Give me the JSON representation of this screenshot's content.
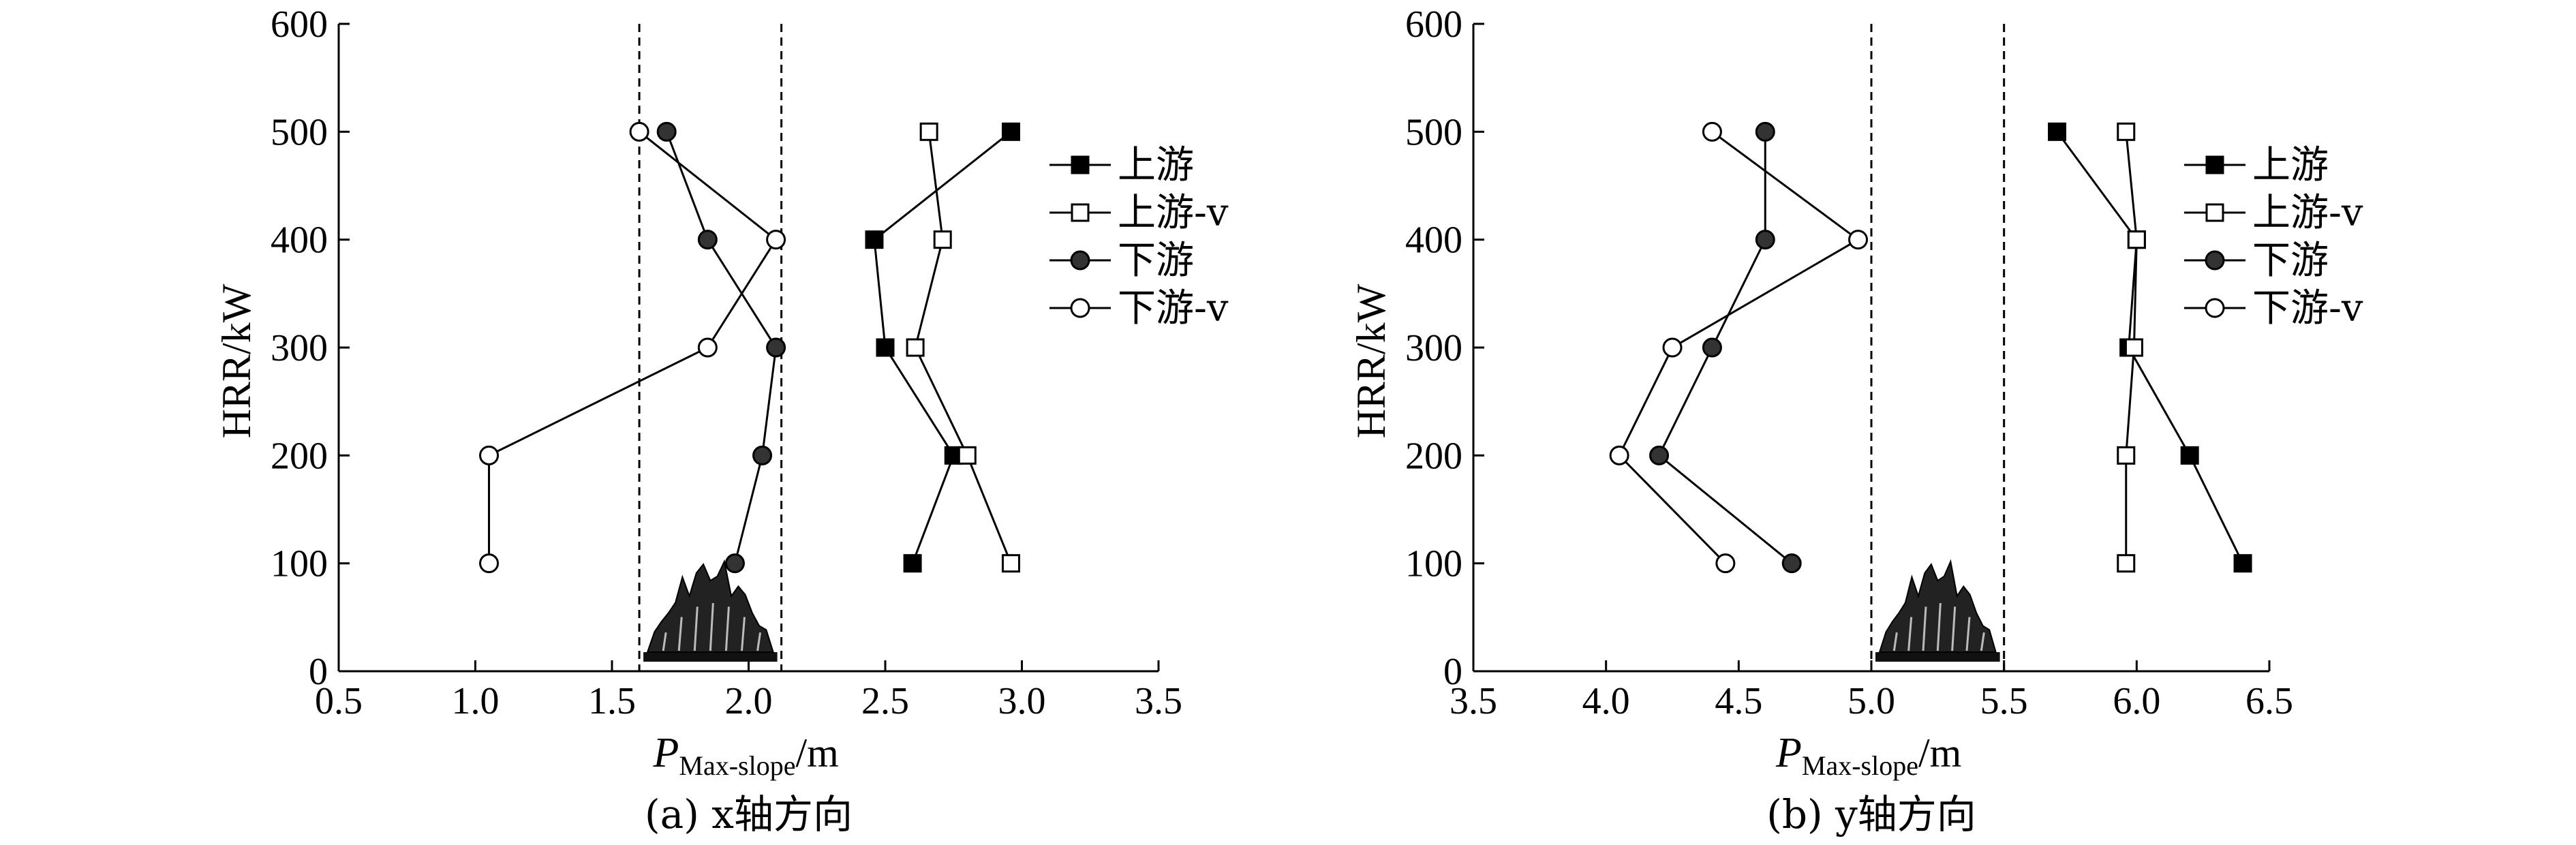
{
  "chart_data": [
    {
      "type": "line",
      "caption": "(a) x轴方向",
      "xlabel_main": "P",
      "xlabel_sub": "Max-slope",
      "xlabel_unit": "/m",
      "ylabel": "HRR/kW",
      "xlim": [
        0.5,
        3.5
      ],
      "ylim": [
        0,
        600
      ],
      "xticks": [
        "0.5",
        "1.0",
        "1.5",
        "2.0",
        "2.5",
        "3.0",
        "3.5"
      ],
      "yticks": [
        "0",
        "100",
        "200",
        "300",
        "400",
        "500",
        "600"
      ],
      "dashed_lines_x": [
        1.6,
        2.12
      ],
      "fire_span": [
        1.6,
        2.12
      ],
      "legend_position": "top-right",
      "series": [
        {
          "name": "上游",
          "marker": "square-filled",
          "points": [
            [
              2.6,
              100
            ],
            [
              2.75,
              200
            ],
            [
              2.5,
              300
            ],
            [
              2.46,
              400
            ],
            [
              2.96,
              500
            ]
          ]
        },
        {
          "name": "上游-v",
          "marker": "square-open",
          "points": [
            [
              2.96,
              100
            ],
            [
              2.8,
              200
            ],
            [
              2.61,
              300
            ],
            [
              2.71,
              400
            ],
            [
              2.66,
              500
            ]
          ]
        },
        {
          "name": "下游",
          "marker": "circle-filled",
          "points": [
            [
              1.95,
              100
            ],
            [
              2.05,
              200
            ],
            [
              2.1,
              300
            ],
            [
              1.85,
              400
            ],
            [
              1.7,
              500
            ]
          ]
        },
        {
          "name": "下游-v",
          "marker": "circle-open",
          "points": [
            [
              1.05,
              100
            ],
            [
              1.05,
              200
            ],
            [
              1.85,
              300
            ],
            [
              2.1,
              400
            ],
            [
              1.6,
              500
            ]
          ]
        }
      ]
    },
    {
      "type": "line",
      "caption": "(b) y轴方向",
      "xlabel_main": "P",
      "xlabel_sub": "Max-slope",
      "xlabel_unit": "/m",
      "ylabel": "HRR/kW",
      "xlim": [
        3.5,
        6.5
      ],
      "ylim": [
        0,
        600
      ],
      "xticks": [
        "3.5",
        "4.0",
        "4.5",
        "5.0",
        "5.5",
        "6.0",
        "6.5"
      ],
      "yticks": [
        "0",
        "100",
        "200",
        "300",
        "400",
        "500",
        "600"
      ],
      "dashed_lines_x": [
        5.0,
        5.5
      ],
      "fire_span": [
        5.0,
        5.5
      ],
      "legend_position": "top-right",
      "series": [
        {
          "name": "上游",
          "marker": "square-filled",
          "points": [
            [
              6.4,
              100
            ],
            [
              6.2,
              200
            ],
            [
              5.97,
              300
            ],
            [
              6.0,
              400
            ],
            [
              5.7,
              500
            ]
          ]
        },
        {
          "name": "上游-v",
          "marker": "square-open",
          "points": [
            [
              5.96,
              100
            ],
            [
              5.96,
              200
            ],
            [
              5.99,
              300
            ],
            [
              6.0,
              400
            ],
            [
              5.96,
              500
            ]
          ]
        },
        {
          "name": "下游",
          "marker": "circle-filled",
          "points": [
            [
              4.7,
              100
            ],
            [
              4.2,
              200
            ],
            [
              4.4,
              300
            ],
            [
              4.6,
              400
            ],
            [
              4.6,
              500
            ]
          ]
        },
        {
          "name": "下游-v",
          "marker": "circle-open",
          "points": [
            [
              4.45,
              100
            ],
            [
              4.05,
              200
            ],
            [
              4.25,
              300
            ],
            [
              4.95,
              400
            ],
            [
              4.4,
              500
            ]
          ]
        }
      ]
    }
  ]
}
